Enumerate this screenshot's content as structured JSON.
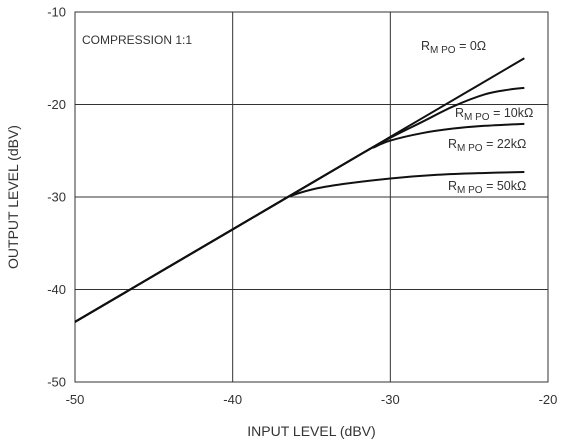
{
  "chart_data": {
    "type": "line",
    "annotation": "COMPRESSION 1:1",
    "xlabel": "INPUT LEVEL (dBV)",
    "ylabel": "OUTPUT LEVEL (dBV)",
    "xlim": [
      -50,
      -20
    ],
    "ylim": [
      -50,
      -10
    ],
    "x_ticks": [
      -50,
      -40,
      -30,
      -20
    ],
    "y_ticks": [
      -10,
      -20,
      -30,
      -40,
      -50
    ],
    "grid": true,
    "series": [
      {
        "name_main": "R",
        "name_sub": "M PO",
        "name_rest": " = 0Ω",
        "points": [
          [
            -50,
            -43.5
          ],
          [
            -45,
            -38.5
          ],
          [
            -40,
            -33.5
          ],
          [
            -35,
            -28.5
          ],
          [
            -30,
            -23.5
          ],
          [
            -25,
            -18.5
          ],
          [
            -21.5,
            -15
          ]
        ]
      },
      {
        "name_main": "R",
        "name_sub": "M PO",
        "name_rest": " = 10kΩ",
        "points": [
          [
            -50,
            -43.5
          ],
          [
            -40,
            -33.5
          ],
          [
            -32,
            -25.5
          ],
          [
            -30,
            -23.6
          ],
          [
            -28,
            -21.9
          ],
          [
            -26,
            -20.2
          ],
          [
            -24,
            -18.9
          ],
          [
            -22.5,
            -18.4
          ],
          [
            -21.5,
            -18.2
          ]
        ]
      },
      {
        "name_main": "R",
        "name_sub": "M PO",
        "name_rest": " = 22kΩ",
        "points": [
          [
            -50,
            -43.5
          ],
          [
            -40,
            -33.5
          ],
          [
            -32,
            -25.5
          ],
          [
            -31,
            -24.6
          ],
          [
            -30,
            -23.9
          ],
          [
            -28,
            -23.1
          ],
          [
            -26,
            -22.6
          ],
          [
            -24,
            -22.3
          ],
          [
            -21.5,
            -22.1
          ]
        ]
      },
      {
        "name_main": "R",
        "name_sub": "M PO",
        "name_rest": " = 50kΩ",
        "points": [
          [
            -50,
            -43.5
          ],
          [
            -40,
            -33.5
          ],
          [
            -37,
            -30.5
          ],
          [
            -36.5,
            -30
          ],
          [
            -35,
            -29.2
          ],
          [
            -33,
            -28.6
          ],
          [
            -30,
            -28.0
          ],
          [
            -27,
            -27.6
          ],
          [
            -24,
            -27.4
          ],
          [
            -21.5,
            -27.3
          ]
        ]
      }
    ]
  }
}
